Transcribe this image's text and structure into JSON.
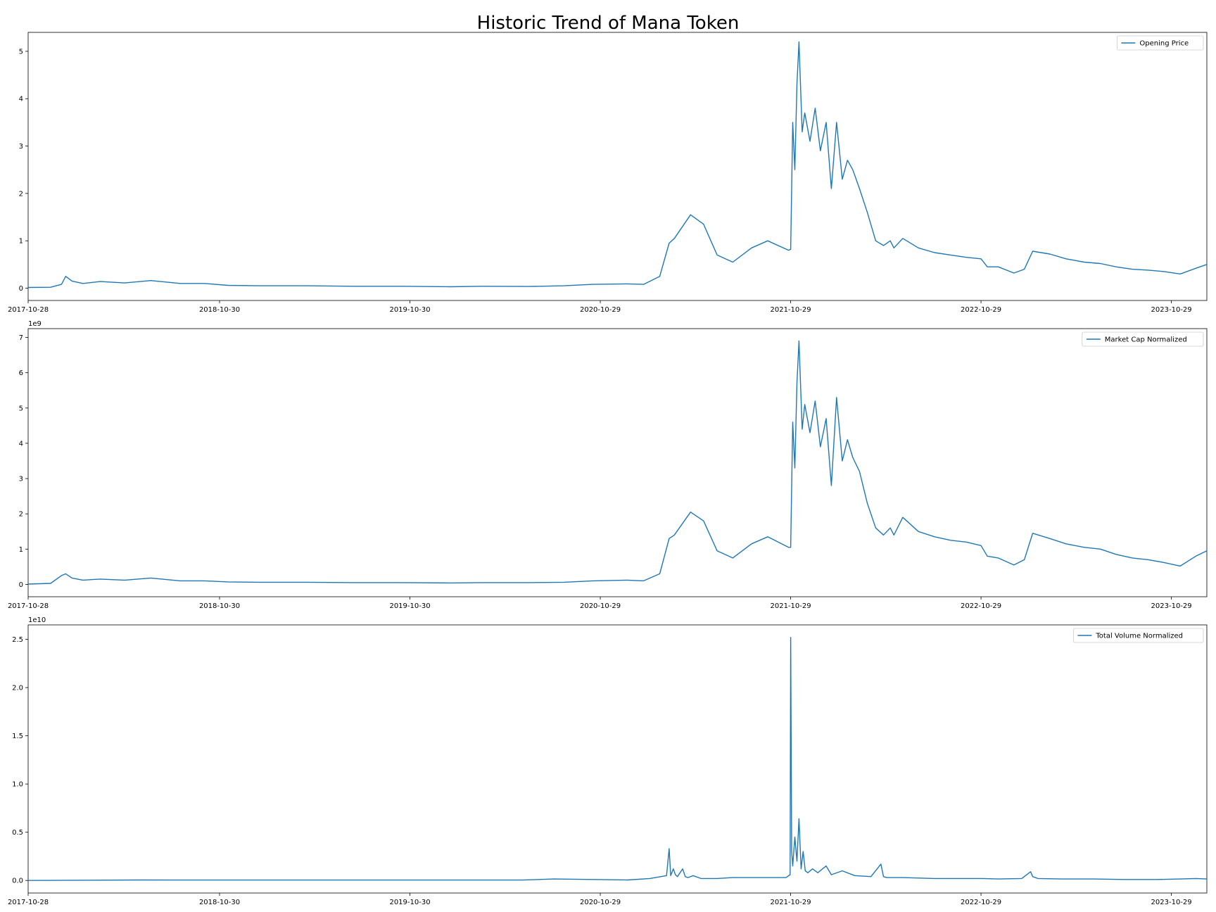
{
  "figure": {
    "title": "Historic Trend of Mana Token",
    "series_color": "#1f77b4",
    "x_tick_labels": [
      "2017-10-28",
      "2018-10-30",
      "2019-10-30",
      "2020-10-29",
      "2021-10-29",
      "2022-10-29",
      "2023-10-29"
    ]
  },
  "chart_data": [
    {
      "type": "line",
      "title": "",
      "legend": "Opening Price",
      "legend_position": "top-right",
      "grid": false,
      "offset_label": "",
      "xlim": [
        "2017-10-28",
        "2024-01-05"
      ],
      "ylim": [
        -0.26,
        5.4
      ],
      "yticks": [
        0,
        1,
        2,
        3,
        4,
        5
      ],
      "ytick_labels": [
        "0",
        "1",
        "2",
        "3",
        "4",
        "5"
      ],
      "series": [
        {
          "name": "Opening Price",
          "x": [
            "2017-10-28",
            "2017-12-10",
            "2017-12-31",
            "2018-01-08",
            "2018-01-20",
            "2018-02-10",
            "2018-03-15",
            "2018-05-01",
            "2018-06-20",
            "2018-08-15",
            "2018-10-01",
            "2018-11-15",
            "2019-01-15",
            "2019-04-15",
            "2019-07-15",
            "2019-10-15",
            "2020-01-15",
            "2020-03-15",
            "2020-06-15",
            "2020-08-20",
            "2020-10-15",
            "2020-12-20",
            "2021-01-20",
            "2021-02-20",
            "2021-03-10",
            "2021-03-20",
            "2021-04-20",
            "2021-05-15",
            "2021-06-10",
            "2021-07-10",
            "2021-08-15",
            "2021-09-15",
            "2021-10-25",
            "2021-10-29",
            "2021-11-02",
            "2021-11-06",
            "2021-11-10",
            "2021-11-14",
            "2021-11-20",
            "2021-11-25",
            "2021-12-05",
            "2021-12-15",
            "2021-12-25",
            "2022-01-05",
            "2022-01-15",
            "2022-01-25",
            "2022-02-05",
            "2022-02-15",
            "2022-02-25",
            "2022-03-10",
            "2022-03-25",
            "2022-04-10",
            "2022-04-25",
            "2022-05-08",
            "2022-05-15",
            "2022-06-01",
            "2022-07-01",
            "2022-08-01",
            "2022-09-01",
            "2022-10-01",
            "2022-10-29",
            "2022-11-10",
            "2022-12-01",
            "2022-12-31",
            "2023-01-20",
            "2023-02-05",
            "2023-03-10",
            "2023-04-10",
            "2023-05-15",
            "2023-06-15",
            "2023-07-15",
            "2023-08-15",
            "2023-09-15",
            "2023-10-15",
            "2023-11-15",
            "2023-12-15",
            "2024-01-05"
          ],
          "y": [
            0.015,
            0.02,
            0.08,
            0.25,
            0.15,
            0.1,
            0.14,
            0.11,
            0.16,
            0.1,
            0.1,
            0.06,
            0.05,
            0.05,
            0.04,
            0.04,
            0.03,
            0.04,
            0.035,
            0.05,
            0.08,
            0.09,
            0.08,
            0.25,
            0.95,
            1.05,
            1.55,
            1.35,
            0.7,
            0.55,
            0.85,
            1.0,
            0.8,
            0.82,
            3.5,
            2.5,
            4.3,
            5.2,
            3.3,
            3.7,
            3.1,
            3.8,
            2.9,
            3.5,
            2.1,
            3.5,
            2.3,
            2.7,
            2.5,
            2.1,
            1.6,
            1.0,
            0.9,
            1.0,
            0.85,
            1.05,
            0.85,
            0.75,
            0.7,
            0.65,
            0.62,
            0.45,
            0.45,
            0.32,
            0.4,
            0.78,
            0.72,
            0.62,
            0.55,
            0.52,
            0.45,
            0.4,
            0.38,
            0.35,
            0.3,
            0.42,
            0.5
          ]
        }
      ]
    },
    {
      "type": "line",
      "title": "",
      "legend": "Market Cap Normalized",
      "legend_position": "top-right",
      "grid": false,
      "offset_label": "1e9",
      "xlim": [
        "2017-10-28",
        "2024-01-05"
      ],
      "ylim": [
        -0.35,
        7.25
      ],
      "yticks": [
        0,
        1,
        2,
        3,
        4,
        5,
        6,
        7
      ],
      "ytick_labels": [
        "0",
        "1",
        "2",
        "3",
        "4",
        "5",
        "6",
        "7"
      ],
      "series": [
        {
          "name": "Market Cap Normalized",
          "x": [
            "2017-10-28",
            "2017-12-10",
            "2017-12-31",
            "2018-01-08",
            "2018-01-20",
            "2018-02-10",
            "2018-03-15",
            "2018-05-01",
            "2018-06-20",
            "2018-08-15",
            "2018-10-01",
            "2018-11-15",
            "2019-01-15",
            "2019-04-15",
            "2019-07-15",
            "2019-10-15",
            "2020-01-15",
            "2020-03-15",
            "2020-06-15",
            "2020-08-20",
            "2020-10-15",
            "2020-12-20",
            "2021-01-20",
            "2021-02-20",
            "2021-03-10",
            "2021-03-20",
            "2021-04-20",
            "2021-05-15",
            "2021-06-10",
            "2021-07-10",
            "2021-08-15",
            "2021-09-15",
            "2021-10-25",
            "2021-10-29",
            "2021-11-02",
            "2021-11-06",
            "2021-11-10",
            "2021-11-14",
            "2021-11-20",
            "2021-11-25",
            "2021-12-05",
            "2021-12-15",
            "2021-12-25",
            "2022-01-05",
            "2022-01-15",
            "2022-01-25",
            "2022-02-05",
            "2022-02-15",
            "2022-02-25",
            "2022-03-10",
            "2022-03-25",
            "2022-04-10",
            "2022-04-25",
            "2022-05-08",
            "2022-05-15",
            "2022-06-01",
            "2022-07-01",
            "2022-08-01",
            "2022-09-01",
            "2022-10-01",
            "2022-10-29",
            "2022-11-10",
            "2022-12-01",
            "2022-12-31",
            "2023-01-20",
            "2023-02-05",
            "2023-03-10",
            "2023-04-10",
            "2023-05-15",
            "2023-06-15",
            "2023-07-15",
            "2023-08-15",
            "2023-09-15",
            "2023-10-15",
            "2023-11-15",
            "2023-12-15",
            "2024-01-05"
          ],
          "y": [
            0.01,
            0.03,
            0.25,
            0.3,
            0.18,
            0.12,
            0.15,
            0.12,
            0.18,
            0.1,
            0.1,
            0.07,
            0.06,
            0.06,
            0.05,
            0.05,
            0.04,
            0.05,
            0.05,
            0.06,
            0.1,
            0.12,
            0.1,
            0.3,
            1.3,
            1.4,
            2.05,
            1.8,
            0.95,
            0.75,
            1.15,
            1.35,
            1.05,
            1.05,
            4.6,
            3.3,
            5.7,
            6.9,
            4.4,
            5.1,
            4.3,
            5.2,
            3.9,
            4.7,
            2.8,
            5.3,
            3.5,
            4.1,
            3.6,
            3.2,
            2.3,
            1.6,
            1.4,
            1.6,
            1.4,
            1.9,
            1.5,
            1.35,
            1.25,
            1.2,
            1.1,
            0.8,
            0.75,
            0.55,
            0.7,
            1.45,
            1.3,
            1.15,
            1.05,
            1.0,
            0.85,
            0.75,
            0.7,
            0.62,
            0.52,
            0.8,
            0.95
          ]
        }
      ]
    },
    {
      "type": "line",
      "title": "",
      "legend": "Total Volume Normalized",
      "legend_position": "top-right",
      "grid": false,
      "offset_label": "1e10",
      "xlim": [
        "2017-10-28",
        "2024-01-05"
      ],
      "ylim": [
        -0.13,
        2.65
      ],
      "yticks": [
        0,
        0.5,
        1.0,
        1.5,
        2.0,
        2.5
      ],
      "ytick_labels": [
        "0.0",
        "0.5",
        "1.0",
        "1.5",
        "2.0",
        "2.5"
      ],
      "series": [
        {
          "name": "Total Volume Normalized",
          "x": [
            "2017-10-28",
            "2018-06-01",
            "2019-06-01",
            "2020-06-01",
            "2020-08-01",
            "2020-12-20",
            "2021-02-01",
            "2021-03-05",
            "2021-03-10",
            "2021-03-13",
            "2021-03-18",
            "2021-03-22",
            "2021-03-26",
            "2021-04-05",
            "2021-04-10",
            "2021-04-15",
            "2021-04-25",
            "2021-05-10",
            "2021-06-10",
            "2021-07-10",
            "2021-08-20",
            "2021-09-20",
            "2021-10-20",
            "2021-10-28",
            "2021-10-29",
            "2021-10-31",
            "2021-11-02",
            "2021-11-06",
            "2021-11-10",
            "2021-11-14",
            "2021-11-18",
            "2021-11-22",
            "2021-11-26",
            "2021-12-01",
            "2021-12-10",
            "2021-12-20",
            "2022-01-05",
            "2022-01-15",
            "2022-02-05",
            "2022-03-01",
            "2022-04-01",
            "2022-04-20",
            "2022-04-25",
            "2022-05-01",
            "2022-06-01",
            "2022-08-01",
            "2022-10-29",
            "2022-12-01",
            "2023-01-15",
            "2023-02-01",
            "2023-02-05",
            "2023-02-15",
            "2023-04-01",
            "2023-06-01",
            "2023-08-01",
            "2023-10-01",
            "2023-11-15",
            "2023-12-15",
            "2024-01-05"
          ],
          "y": [
            0.0,
            0.005,
            0.004,
            0.004,
            0.015,
            0.005,
            0.02,
            0.05,
            0.33,
            0.05,
            0.12,
            0.06,
            0.04,
            0.12,
            0.04,
            0.03,
            0.05,
            0.02,
            0.02,
            0.03,
            0.03,
            0.03,
            0.03,
            0.06,
            2.52,
            0.3,
            0.15,
            0.45,
            0.2,
            0.64,
            0.12,
            0.3,
            0.1,
            0.08,
            0.12,
            0.08,
            0.15,
            0.06,
            0.1,
            0.05,
            0.04,
            0.17,
            0.04,
            0.03,
            0.03,
            0.02,
            0.02,
            0.015,
            0.02,
            0.09,
            0.04,
            0.02,
            0.015,
            0.015,
            0.01,
            0.01,
            0.015,
            0.02,
            0.015
          ]
        }
      ]
    }
  ]
}
